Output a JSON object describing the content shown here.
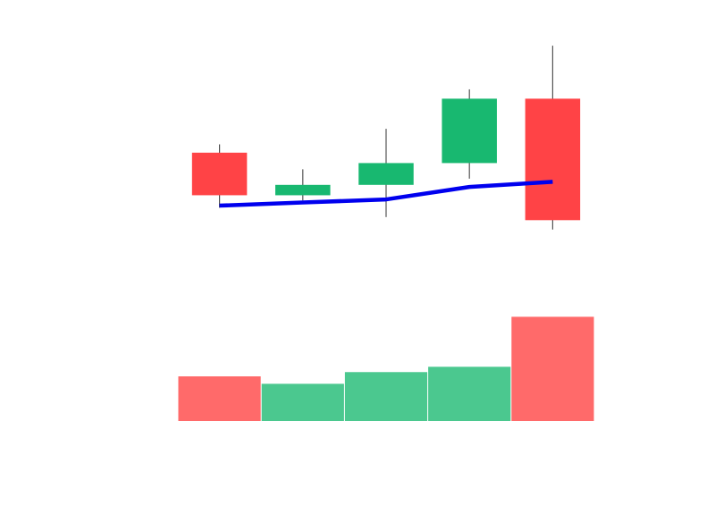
{
  "chart_data": {
    "type": "candlestick",
    "title": "",
    "xlabel": "",
    "ylabel": "",
    "grid": false,
    "legend": "none",
    "colors": {
      "up": "#18b870",
      "down": "#ff4346",
      "up_volume": "#4bc88f",
      "down_volume": "#ff6a6a",
      "wick": "#555555",
      "line": "#0000ee"
    },
    "price_range": [
      2,
      28
    ],
    "volume_range": [
      0,
      10
    ],
    "candles": [
      {
        "open": 17.6,
        "high": 18.4,
        "low": 12.3,
        "close": 13.5,
        "volume": 4.2,
        "direction": "down"
      },
      {
        "open": 13.5,
        "high": 16.0,
        "low": 13.0,
        "close": 14.5,
        "volume": 3.5,
        "direction": "up"
      },
      {
        "open": 14.5,
        "high": 19.9,
        "low": 11.4,
        "close": 16.6,
        "volume": 4.6,
        "direction": "up"
      },
      {
        "open": 16.6,
        "high": 23.7,
        "low": 15.1,
        "close": 22.8,
        "volume": 5.1,
        "direction": "up"
      },
      {
        "open": 22.8,
        "high": 27.9,
        "low": 10.2,
        "close": 11.1,
        "volume": 9.8,
        "direction": "down"
      }
    ],
    "line": {
      "values": [
        12.5,
        12.8,
        13.1,
        14.3,
        14.8
      ]
    }
  }
}
